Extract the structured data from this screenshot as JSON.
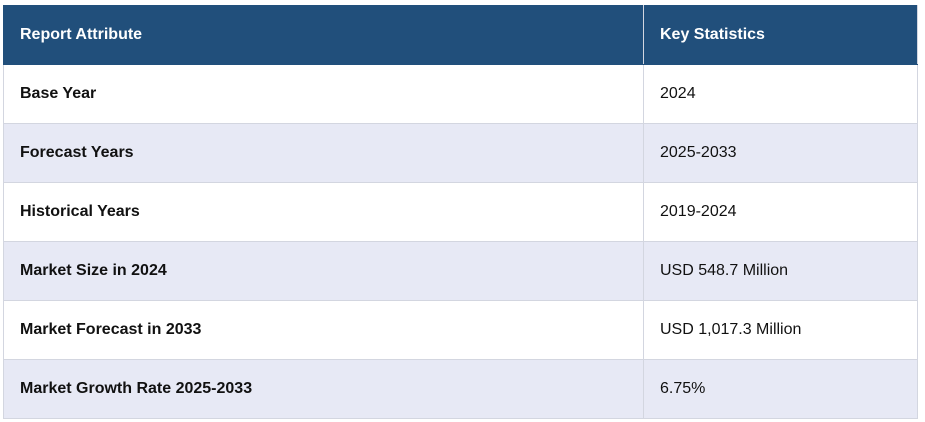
{
  "table": {
    "header": [
      "Report Attribute",
      "Key Statistics"
    ],
    "rows": [
      [
        "Base Year",
        "2024"
      ],
      [
        "Forecast Years",
        "2025-2033"
      ],
      [
        "Historical Years",
        "2019-2024"
      ],
      [
        "Market Size in 2024",
        "USD 548.7 Million"
      ],
      [
        "Market Forecast in 2033",
        "USD 1,017.3 Million"
      ],
      [
        "Market Growth Rate 2025-2033",
        "6.75%"
      ]
    ]
  }
}
